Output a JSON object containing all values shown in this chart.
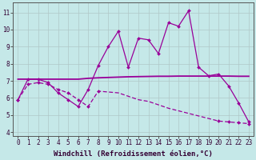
{
  "bg_color": "#c5e8e8",
  "line_color": "#990099",
  "x_data": [
    0,
    1,
    2,
    3,
    4,
    5,
    6,
    7,
    8,
    9,
    10,
    11,
    12,
    13,
    14,
    15,
    16,
    17,
    18,
    19,
    20,
    21,
    22,
    23
  ],
  "upper_y": [
    5.9,
    7.1,
    7.1,
    6.9,
    6.3,
    5.9,
    5.5,
    6.5,
    7.9,
    9.0,
    9.9,
    7.8,
    9.5,
    9.4,
    8.6,
    10.4,
    10.2,
    11.1,
    7.8,
    7.3,
    7.4,
    6.7,
    5.7,
    4.6
  ],
  "middle_y": [
    7.1,
    7.1,
    7.1,
    7.1,
    7.1,
    7.1,
    7.1,
    7.15,
    7.18,
    7.2,
    7.22,
    7.24,
    7.25,
    7.26,
    7.27,
    7.27,
    7.28,
    7.28,
    7.28,
    7.28,
    7.28,
    7.28,
    7.27,
    7.27
  ],
  "lower_y": [
    5.9,
    6.8,
    6.9,
    6.8,
    6.5,
    6.3,
    5.9,
    5.5,
    6.4,
    6.35,
    6.3,
    6.1,
    5.9,
    5.8,
    5.6,
    5.4,
    5.25,
    5.1,
    4.95,
    4.8,
    4.65,
    4.6,
    4.55,
    4.5
  ],
  "lower_marker_x": [
    0,
    1,
    2,
    3,
    4,
    5,
    6,
    7,
    8,
    20,
    21,
    22,
    23
  ],
  "lower_marker_y": [
    5.9,
    6.8,
    6.9,
    6.8,
    6.5,
    6.3,
    5.9,
    5.5,
    6.4,
    4.65,
    4.6,
    4.55,
    4.5
  ],
  "ylim": [
    3.8,
    11.6
  ],
  "xlim": [
    -0.5,
    23.5
  ],
  "yticks": [
    4,
    5,
    6,
    7,
    8,
    9,
    10,
    11
  ],
  "xticks": [
    0,
    1,
    2,
    3,
    4,
    5,
    6,
    7,
    8,
    9,
    10,
    11,
    12,
    13,
    14,
    15,
    16,
    17,
    18,
    19,
    20,
    21,
    22,
    23
  ],
  "xlabel": "Windchill (Refroidissement éolien,°C)",
  "xlabel_fontsize": 6.5,
  "tick_fontsize": 5.5,
  "marker": "D",
  "marker_size": 2.0,
  "linewidth": 0.9
}
